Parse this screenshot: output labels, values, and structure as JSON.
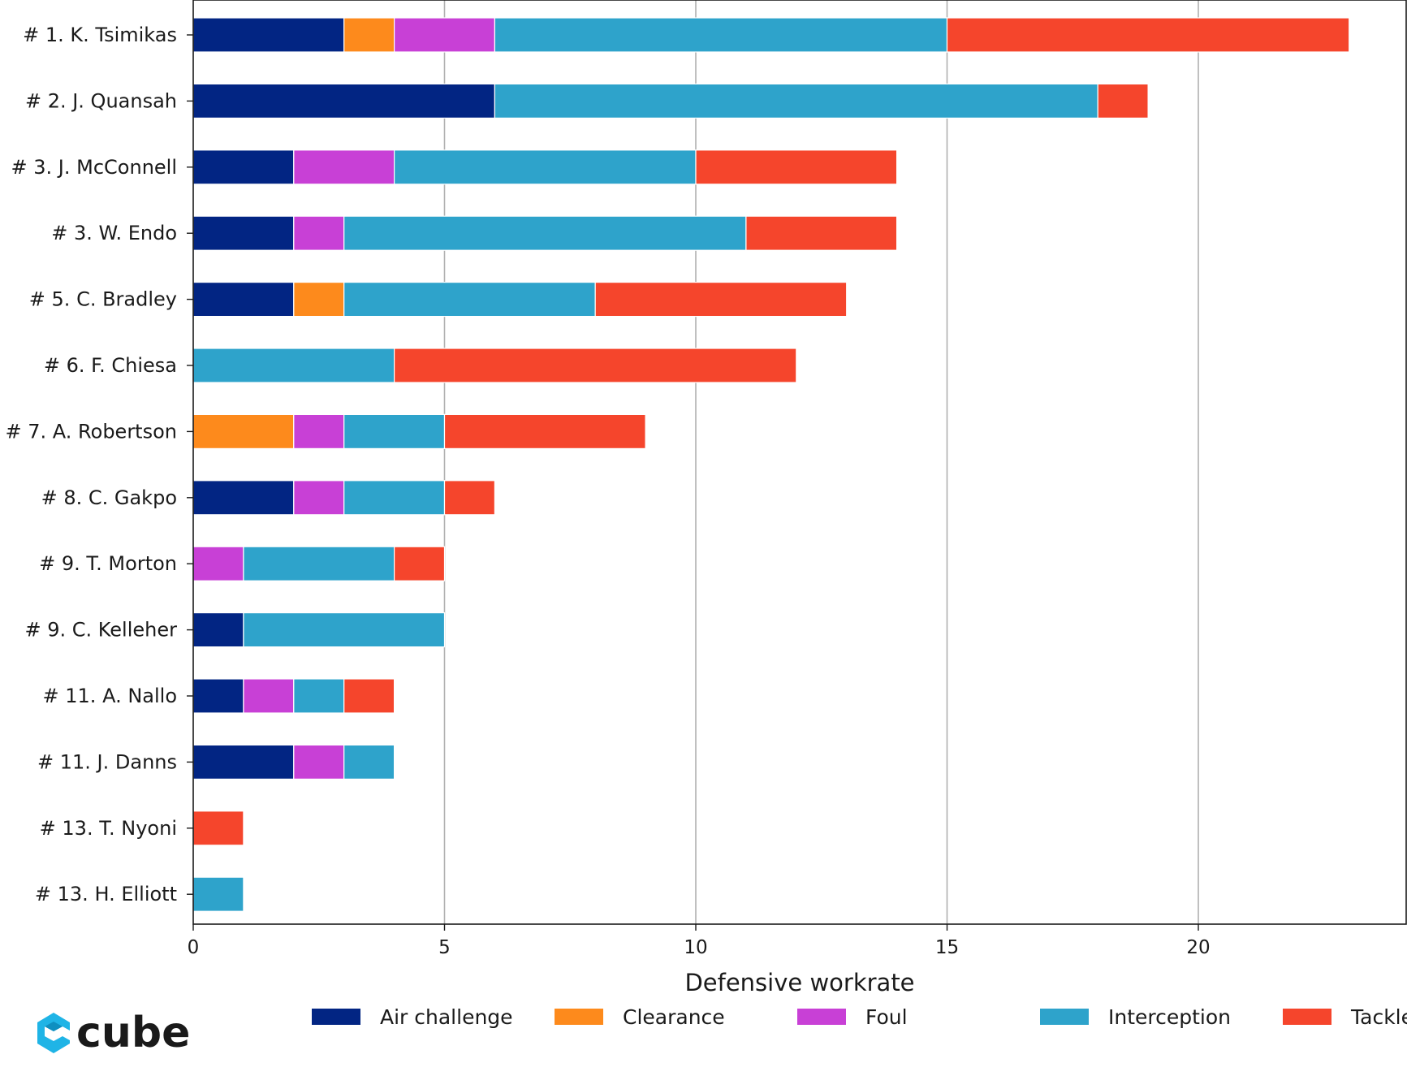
{
  "chart_data": {
    "type": "bar",
    "orientation": "horizontal",
    "stacked": true,
    "title": "",
    "xlabel": "Defensive workrate",
    "ylabel": "",
    "xlim": [
      0,
      24.1
    ],
    "x_ticks": [
      0,
      5,
      10,
      15,
      20
    ],
    "grid": "vertical",
    "legend": "bottom",
    "categories": [
      "# 1.  K. Tsimikas",
      "# 2.  J. Quansah",
      "# 3.  J. McConnell",
      "# 3.  W. Endo",
      "# 5.  C. Bradley",
      "# 6.  F. Chiesa",
      "# 7.  A. Robertson",
      "# 8.  C. Gakpo",
      "# 9.  T. Morton",
      "# 9.  C. Kelleher",
      "# 11.  A. Nallo",
      "# 11.  J. Danns",
      "# 13.  T. Nyoni",
      "# 13.  H. Elliott"
    ],
    "series": [
      {
        "name": "Air challenge",
        "color": "#022583",
        "values": [
          3,
          6,
          2,
          2,
          2,
          0,
          0,
          2,
          0,
          1,
          1,
          2,
          0,
          0
        ]
      },
      {
        "name": "Clearance",
        "color": "#fd8a1c",
        "values": [
          1,
          0,
          0,
          0,
          1,
          0,
          2,
          0,
          0,
          0,
          0,
          0,
          0,
          0
        ]
      },
      {
        "name": "Foul",
        "color": "#c840d6",
        "values": [
          2,
          0,
          2,
          1,
          0,
          0,
          1,
          1,
          1,
          0,
          1,
          1,
          0,
          0
        ]
      },
      {
        "name": "Interception",
        "color": "#2ea3cb",
        "values": [
          9,
          12,
          6,
          8,
          5,
          4,
          2,
          2,
          3,
          4,
          1,
          1,
          0,
          1
        ]
      },
      {
        "name": "Tackle",
        "color": "#f5452c",
        "values": [
          8,
          1,
          4,
          3,
          5,
          8,
          4,
          1,
          1,
          0,
          1,
          0,
          1,
          0
        ]
      }
    ]
  },
  "logo": {
    "word": "cube",
    "icon": "cube-logo-icon"
  }
}
